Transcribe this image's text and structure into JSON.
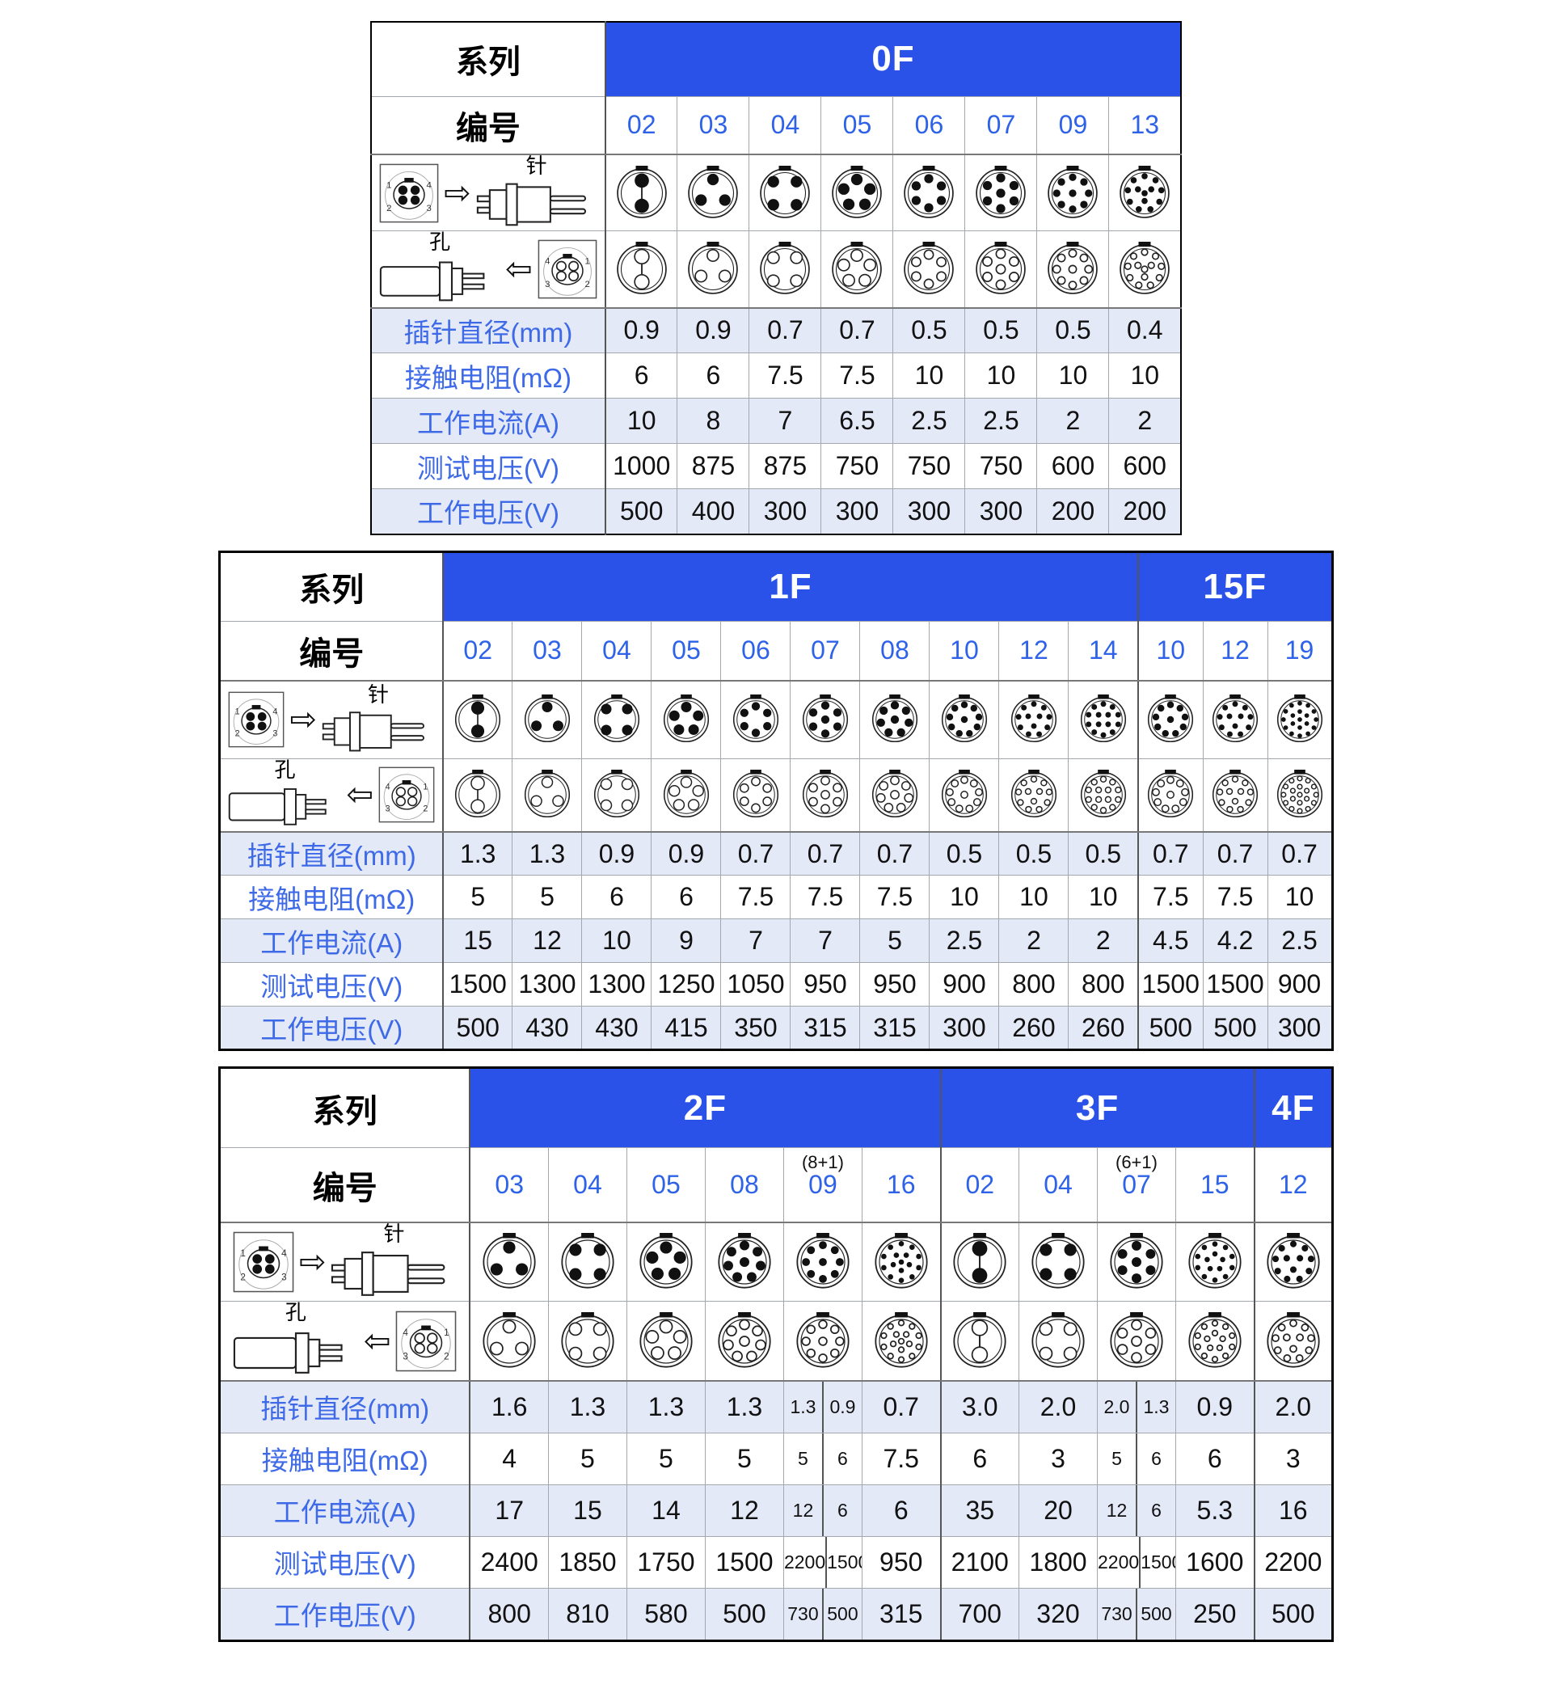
{
  "colors": {
    "header_bg": "#2B52E8",
    "code_text": "#2E62E8",
    "label_text": "#3E6AE8",
    "band_bg": "#E4E9F8",
    "value_text": "#111111",
    "series_text": "#FFFFFF"
  },
  "labels": {
    "series": "系列",
    "number": "编号",
    "pin": "针",
    "hole": "孔"
  },
  "row_labels": [
    {
      "key": "pin_diameter",
      "label": "插针直径(mm)"
    },
    {
      "key": "contact_resistance",
      "label": "接触电阻(mΩ)"
    },
    {
      "key": "working_current",
      "label": "工作电流(A)"
    },
    {
      "key": "test_voltage",
      "label": "测试电压(V)"
    },
    {
      "key": "working_voltage",
      "label": "工作电压(V)"
    }
  ],
  "tables": [
    {
      "series": [
        {
          "name": "0F",
          "columns": [
            {
              "code": "02",
              "pins": 2,
              "pin_diameter": "0.9",
              "contact_resistance": "6",
              "working_current": "10",
              "test_voltage": "1000",
              "working_voltage": "500"
            },
            {
              "code": "03",
              "pins": 3,
              "pin_diameter": "0.9",
              "contact_resistance": "6",
              "working_current": "8",
              "test_voltage": "875",
              "working_voltage": "400"
            },
            {
              "code": "04",
              "pins": 4,
              "pin_diameter": "0.7",
              "contact_resistance": "7.5",
              "working_current": "7",
              "test_voltage": "875",
              "working_voltage": "300"
            },
            {
              "code": "05",
              "pins": 5,
              "pin_diameter": "0.7",
              "contact_resistance": "7.5",
              "working_current": "6.5",
              "test_voltage": "750",
              "working_voltage": "300"
            },
            {
              "code": "06",
              "pins": 6,
              "pin_diameter": "0.5",
              "contact_resistance": "10",
              "working_current": "2.5",
              "test_voltage": "750",
              "working_voltage": "300"
            },
            {
              "code": "07",
              "pins": 7,
              "pin_diameter": "0.5",
              "contact_resistance": "10",
              "working_current": "2.5",
              "test_voltage": "750",
              "working_voltage": "300"
            },
            {
              "code": "09",
              "pins": 9,
              "pin_diameter": "0.5",
              "contact_resistance": "10",
              "working_current": "2",
              "test_voltage": "600",
              "working_voltage": "200"
            },
            {
              "code": "13",
              "pins": 13,
              "pin_diameter": "0.4",
              "contact_resistance": "10",
              "working_current": "2",
              "test_voltage": "600",
              "working_voltage": "200"
            }
          ]
        }
      ]
    },
    {
      "series": [
        {
          "name": "1F",
          "columns": [
            {
              "code": "02",
              "pins": 2,
              "pin_diameter": "1.3",
              "contact_resistance": "5",
              "working_current": "15",
              "test_voltage": "1500",
              "working_voltage": "500"
            },
            {
              "code": "03",
              "pins": 3,
              "pin_diameter": "1.3",
              "contact_resistance": "5",
              "working_current": "12",
              "test_voltage": "1300",
              "working_voltage": "430"
            },
            {
              "code": "04",
              "pins": 4,
              "pin_diameter": "0.9",
              "contact_resistance": "6",
              "working_current": "10",
              "test_voltage": "1300",
              "working_voltage": "430"
            },
            {
              "code": "05",
              "pins": 5,
              "pin_diameter": "0.9",
              "contact_resistance": "6",
              "working_current": "9",
              "test_voltage": "1250",
              "working_voltage": "415"
            },
            {
              "code": "06",
              "pins": 6,
              "pin_diameter": "0.7",
              "contact_resistance": "7.5",
              "working_current": "7",
              "test_voltage": "1050",
              "working_voltage": "350"
            },
            {
              "code": "07",
              "pins": 7,
              "pin_diameter": "0.7",
              "contact_resistance": "7.5",
              "working_current": "7",
              "test_voltage": "950",
              "working_voltage": "315"
            },
            {
              "code": "08",
              "pins": 8,
              "pin_diameter": "0.7",
              "contact_resistance": "7.5",
              "working_current": "5",
              "test_voltage": "950",
              "working_voltage": "315"
            },
            {
              "code": "10",
              "pins": 10,
              "pin_diameter": "0.5",
              "contact_resistance": "10",
              "working_current": "2.5",
              "test_voltage": "900",
              "working_voltage": "300"
            },
            {
              "code": "12",
              "pins": 12,
              "pin_diameter": "0.5",
              "contact_resistance": "10",
              "working_current": "2",
              "test_voltage": "800",
              "working_voltage": "260"
            },
            {
              "code": "14",
              "pins": 14,
              "pin_diameter": "0.5",
              "contact_resistance": "10",
              "working_current": "2",
              "test_voltage": "800",
              "working_voltage": "260"
            }
          ]
        },
        {
          "name": "15F",
          "columns": [
            {
              "code": "10",
              "pins": 10,
              "pin_diameter": "0.7",
              "contact_resistance": "7.5",
              "working_current": "4.5",
              "test_voltage": "1500",
              "working_voltage": "500"
            },
            {
              "code": "12",
              "pins": 12,
              "pin_diameter": "0.7",
              "contact_resistance": "7.5",
              "working_current": "4.2",
              "test_voltage": "1500",
              "working_voltage": "500"
            },
            {
              "code": "19",
              "pins": 19,
              "pin_diameter": "0.7",
              "contact_resistance": "10",
              "working_current": "2.5",
              "test_voltage": "900",
              "working_voltage": "300"
            }
          ]
        }
      ]
    },
    {
      "series": [
        {
          "name": "2F",
          "columns": [
            {
              "code": "03",
              "pins": 3,
              "pin_diameter": "1.6",
              "contact_resistance": "4",
              "working_current": "17",
              "test_voltage": "2400",
              "working_voltage": "800"
            },
            {
              "code": "04",
              "pins": 4,
              "pin_diameter": "1.3",
              "contact_resistance": "5",
              "working_current": "15",
              "test_voltage": "1850",
              "working_voltage": "810"
            },
            {
              "code": "05",
              "pins": 5,
              "pin_diameter": "1.3",
              "contact_resistance": "5",
              "working_current": "14",
              "test_voltage": "1750",
              "working_voltage": "580"
            },
            {
              "code": "08",
              "pins": 8,
              "pin_diameter": "1.3",
              "contact_resistance": "5",
              "working_current": "12",
              "test_voltage": "1500",
              "working_voltage": "500"
            },
            {
              "code": "09",
              "note": "(8+1)",
              "pins": 9,
              "pin_diameter": [
                "1.3",
                "0.9"
              ],
              "contact_resistance": [
                "5",
                "6"
              ],
              "working_current": [
                "12",
                "6"
              ],
              "test_voltage": [
                "2200",
                "1500"
              ],
              "working_voltage": [
                "730",
                "500"
              ]
            },
            {
              "code": "16",
              "pins": 16,
              "pin_diameter": "0.7",
              "contact_resistance": "7.5",
              "working_current": "6",
              "test_voltage": "950",
              "working_voltage": "315"
            }
          ]
        },
        {
          "name": "3F",
          "columns": [
            {
              "code": "02",
              "pins": 2,
              "pin_diameter": "3.0",
              "contact_resistance": "6",
              "working_current": "35",
              "test_voltage": "2100",
              "working_voltage": "700"
            },
            {
              "code": "04",
              "pins": 4,
              "pin_diameter": "2.0",
              "contact_resistance": "3",
              "working_current": "20",
              "test_voltage": "1800",
              "working_voltage": "320"
            },
            {
              "code": "07",
              "note": "(6+1)",
              "pins": 7,
              "pin_diameter": [
                "2.0",
                "1.3"
              ],
              "contact_resistance": [
                "5",
                "6"
              ],
              "working_current": [
                "12",
                "6"
              ],
              "test_voltage": [
                "2200",
                "1500"
              ],
              "working_voltage": [
                "730",
                "500"
              ]
            },
            {
              "code": "15",
              "pins": 15,
              "pin_diameter": "0.9",
              "contact_resistance": "6",
              "working_current": "5.3",
              "test_voltage": "1600",
              "working_voltage": "250"
            }
          ]
        },
        {
          "name": "4F",
          "columns": [
            {
              "code": "12",
              "pins": 12,
              "pin_diameter": "2.0",
              "contact_resistance": "3",
              "working_current": "16",
              "test_voltage": "2200",
              "working_voltage": "500"
            }
          ]
        }
      ]
    }
  ]
}
